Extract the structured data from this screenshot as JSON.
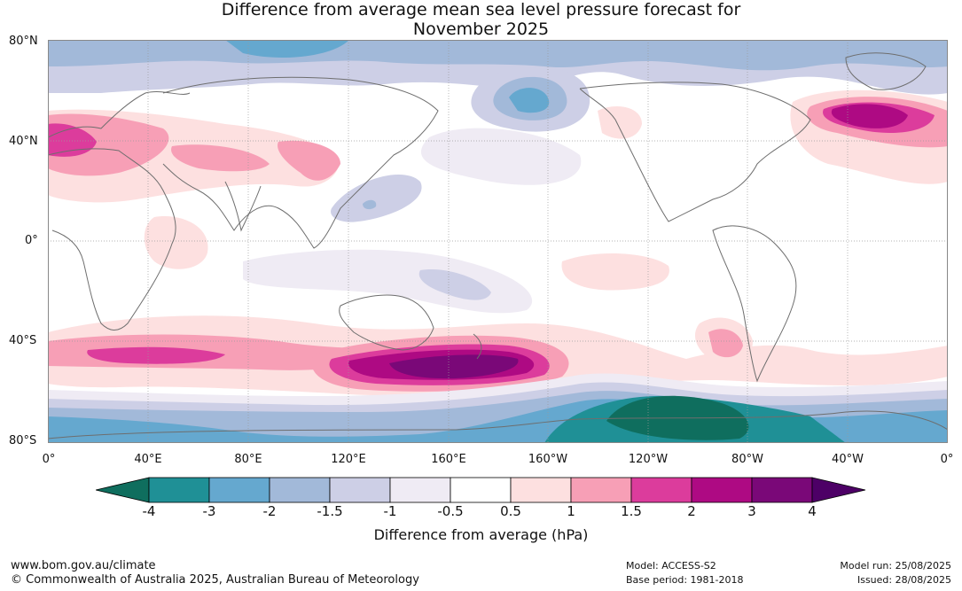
{
  "title_line1": "Difference from average mean sea level pressure forecast for",
  "title_line2": "November 2025",
  "lat_labels": [
    "80°N",
    "40°N",
    "0°",
    "40°S",
    "80°S"
  ],
  "lon_labels": [
    "0°",
    "40°E",
    "80°E",
    "120°E",
    "160°E",
    "160°W",
    "120°W",
    "80°W",
    "40°W",
    "0°"
  ],
  "colorbar": {
    "ticks": [
      "-4",
      "-3",
      "-2",
      "-1.5",
      "-1",
      "-0.5",
      "0.5",
      "1",
      "1.5",
      "2",
      "3",
      "4"
    ],
    "colors": [
      "#0f6e5e",
      "#1f9096",
      "#65a8cf",
      "#a2b9d9",
      "#cdcfe6",
      "#efebf4",
      "#ffffff",
      "#fde0e0",
      "#f79fb6",
      "#dc3c9c",
      "#ae0a83",
      "#7a0878",
      "#4d0066"
    ],
    "label": "Difference from average (hPa)"
  },
  "footer": {
    "url": "www.bom.gov.au/climate",
    "copyright": "© Commonwealth of Australia 2025, Australian Bureau of Meteorology",
    "model": "Model: ACCESS-S2",
    "base_period": "Base period: 1981-2018",
    "model_run": "Model run: 25/08/2025",
    "issued": "Issued: 28/08/2025"
  }
}
